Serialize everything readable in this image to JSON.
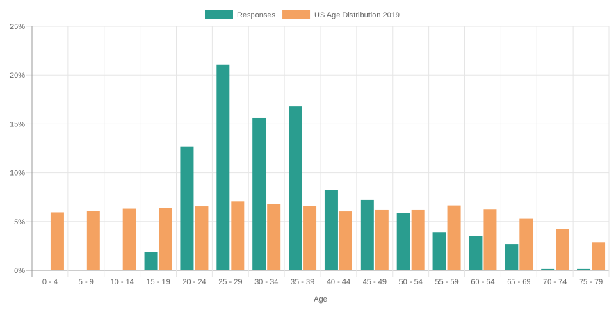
{
  "chart_data": {
    "type": "bar",
    "title": "",
    "xlabel": "Age",
    "ylabel": "",
    "ylim": [
      0,
      25
    ],
    "yticks": [
      "0%",
      "5%",
      "10%",
      "15%",
      "20%",
      "25%"
    ],
    "grid": true,
    "legend_position": "top",
    "categories": [
      "0 - 4",
      "5 - 9",
      "10 - 14",
      "15 - 19",
      "20 - 24",
      "25 - 29",
      "30 - 34",
      "35 - 39",
      "40 - 44",
      "45 - 49",
      "50 - 54",
      "55 - 59",
      "60 - 64",
      "65 - 69",
      "70 - 74",
      "75 - 79"
    ],
    "series": [
      {
        "name": "Responses",
        "color": "#2a9d8f",
        "values": [
          0,
          0,
          0,
          1.9,
          12.7,
          21.1,
          15.6,
          16.8,
          8.2,
          7.2,
          5.85,
          3.9,
          3.5,
          2.7,
          0.15,
          0.15
        ]
      },
      {
        "name": "US Age Distribution 2019",
        "color": "#f4a261",
        "values": [
          5.95,
          6.1,
          6.3,
          6.4,
          6.55,
          7.1,
          6.8,
          6.6,
          6.05,
          6.2,
          6.2,
          6.65,
          6.25,
          5.3,
          4.25,
          2.9
        ]
      }
    ]
  }
}
